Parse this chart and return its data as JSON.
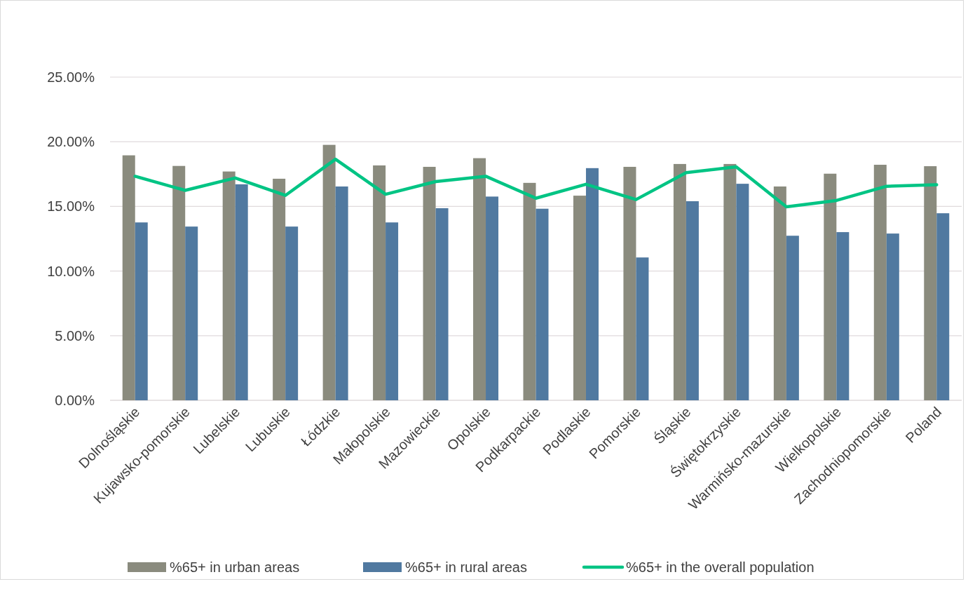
{
  "chart_data": {
    "type": "bar",
    "categories": [
      "Dolnośląskie",
      "Kujawsko-pomorskie",
      "Lubelskie",
      "Lubuskie",
      "Łódzkie",
      "Małopolskie",
      "Mazowieckie",
      "Opolskie",
      "Podkarpackie",
      "Podlaskie",
      "Pomorskie",
      "Śląskie",
      "Świętokrzyskie",
      "Warmińsko-mazurskie",
      "Wielkopolskie",
      "Zachodniopomorskie",
      "Poland"
    ],
    "series": [
      {
        "name": "%65+ in urban areas",
        "color": "#8a8b7e",
        "values": [
          18.95,
          18.13,
          17.7,
          17.14,
          19.76,
          18.17,
          18.06,
          18.73,
          16.82,
          15.83,
          18.06,
          18.28,
          18.28,
          16.54,
          17.53,
          18.22,
          18.11
        ]
      },
      {
        "name": "%65+ in rural areas",
        "color": "#5079a0",
        "values": [
          13.76,
          13.44,
          16.71,
          13.44,
          16.54,
          13.76,
          14.86,
          15.76,
          14.82,
          17.96,
          11.05,
          15.4,
          16.75,
          12.73,
          13.01,
          12.9,
          14.47
        ]
      },
      {
        "name": "%65+ in the overall population",
        "type": "line",
        "color": "#00c484",
        "values": [
          17.33,
          16.24,
          17.2,
          15.85,
          18.65,
          15.94,
          16.92,
          17.33,
          15.63,
          16.71,
          15.53,
          17.61,
          18.06,
          14.97,
          15.46,
          16.56,
          16.67
        ]
      }
    ],
    "ylim": [
      0,
      25
    ],
    "yticks": [
      {
        "value": 0,
        "label": "0.00%"
      },
      {
        "value": 5,
        "label": "5.00%"
      },
      {
        "value": 10,
        "label": "10.00%"
      },
      {
        "value": 15,
        "label": "15.00%"
      },
      {
        "value": 20,
        "label": "20.00%"
      },
      {
        "value": 25,
        "label": "25.00%"
      }
    ],
    "grid": "y",
    "legend": "bottom",
    "marker": "none",
    "line_style": "solid"
  }
}
